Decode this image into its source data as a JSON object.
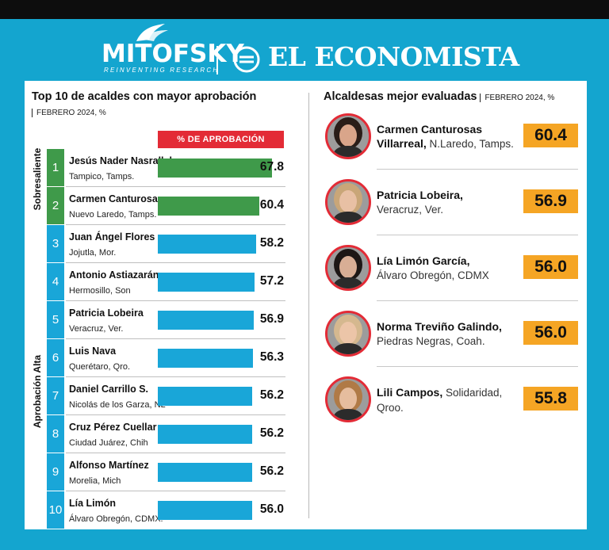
{
  "header": {
    "brand_left": "MITOFSKY",
    "brand_left_tagline": "REINVENTING RESEARCH",
    "brand_right": "EL ECONOMISTA"
  },
  "colors": {
    "frame": "#14a5cf",
    "sobresaliente": "#3f9a4a",
    "alta": "#19a6d8",
    "legend": "#e32b36",
    "highlight": "#f5a524"
  },
  "chart_data": [
    {
      "type": "bar",
      "title": "Top 10 de acaldes con mayor aprobación",
      "subtitle": "FEBRERO 2024, %",
      "legend": "% DE APROBACIÓN",
      "groups": [
        {
          "label": "Sobresaliente",
          "ranks": [
            1,
            2
          ]
        },
        {
          "label": "Aprobación Alta",
          "ranks": [
            3,
            4,
            5,
            6,
            7,
            8,
            9,
            10
          ]
        }
      ],
      "xlim": [
        0,
        72
      ],
      "rows": [
        {
          "rank": "1",
          "name": "Jesús Nader Nasrallah",
          "city": "Tampico, Tamps.",
          "value": 67.8,
          "label": "67.8",
          "group": "sobresaliente"
        },
        {
          "rank": "2",
          "name": "Carmen Canturosas",
          "city": "Nuevo Laredo, Tamps.",
          "value": 60.4,
          "label": "60.4",
          "group": "sobresaliente"
        },
        {
          "rank": "3",
          "name": "Juan Ángel Flores",
          "city": "Jojutla, Mor.",
          "value": 58.2,
          "label": "58.2",
          "group": "alta"
        },
        {
          "rank": "4",
          "name": "Antonio Astiazarán,",
          "city": "Hermosillo, Son",
          "value": 57.2,
          "label": "57.2",
          "group": "alta"
        },
        {
          "rank": "5",
          "name": "Patricia Lobeira",
          "city": "Veracruz, Ver.",
          "value": 56.9,
          "label": "56.9",
          "group": "alta"
        },
        {
          "rank": "6",
          "name": "Luis Nava",
          "city": "Querétaro, Qro.",
          "value": 56.3,
          "label": "56.3",
          "group": "alta"
        },
        {
          "rank": "7",
          "name": "Daniel Carrillo S.",
          "city": "Nicolás de los Garza, NL",
          "value": 56.2,
          "label": "56.2",
          "group": "alta"
        },
        {
          "rank": "8",
          "name": "Cruz Pérez Cuellar",
          "city": "Ciudad Juárez, Chih",
          "value": 56.2,
          "label": "56.2",
          "group": "alta"
        },
        {
          "rank": "9",
          "name": "Alfonso Martínez",
          "city": "Morelia, Mich",
          "value": 56.2,
          "label": "56.2",
          "group": "alta"
        },
        {
          "rank": "10",
          "name": "Lía Limón",
          "city": "Álvaro Obregón, CDMX.",
          "value": 56.0,
          "label": "56.0",
          "group": "alta"
        }
      ]
    },
    {
      "type": "table",
      "title": "Alcaldesas mejor evaluadas",
      "subtitle": "FEBRERO 2024, %",
      "rows": [
        {
          "name": "Carmen Canturosas",
          "name2": "Villarreal,",
          "place": " N.Laredo, Tamps.",
          "value": "60.4",
          "hair": "#2a1d18",
          "skin": "#d9a58a"
        },
        {
          "name": "Patricia Lobeira,",
          "name2": "",
          "place": "Veracruz, Ver.",
          "value": "56.9",
          "hair": "#c9a678",
          "skin": "#e8c0a4"
        },
        {
          "name": "Lía Limón García,",
          "name2": "",
          "place": "Álvaro Obregón, CDMX",
          "value": "56.0",
          "hair": "#1d1715",
          "skin": "#d8ae95"
        },
        {
          "name": "Norma Treviño Galindo,",
          "name2": "",
          "place": "Piedras Negras, Coah.",
          "value": "56.0",
          "hair": "#d5b88f",
          "skin": "#ecc5a8"
        },
        {
          "name": "Lili Campos,",
          "name2": "",
          "place_inline": " Solidaridad,",
          "place": "Qroo.",
          "value": "55.8",
          "hair": "#b07a46",
          "skin": "#e6bd9e"
        }
      ]
    }
  ]
}
